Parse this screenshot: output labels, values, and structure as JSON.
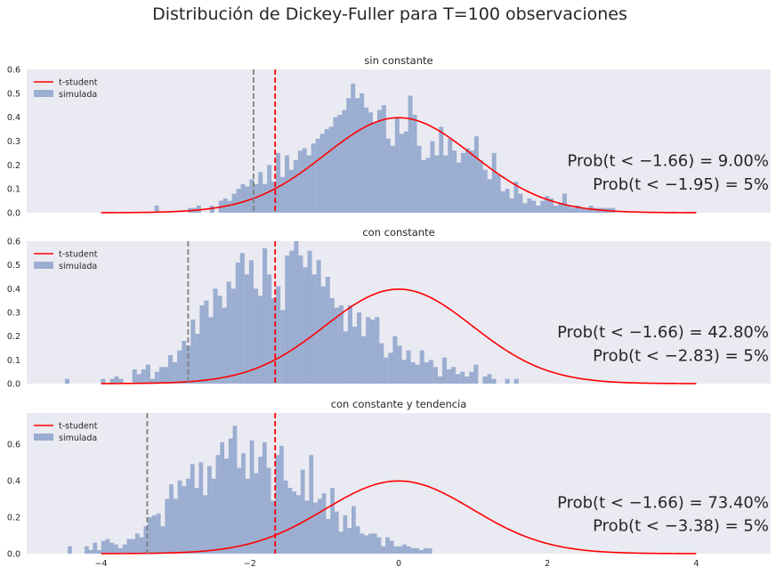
{
  "figure": {
    "suptitle": "Distribución de Dickey-Fuller para T=100 observaciones",
    "colors": {
      "background": "#eaeaf2",
      "histogram": "#4c72b0",
      "t_curve": "#ff0000",
      "t_critical_line": "#ff0000",
      "df_critical_line": "#808080"
    }
  },
  "chart_data": [
    {
      "type": "bar",
      "title": "sin constante",
      "xlim": [
        -5,
        5
      ],
      "ylim": [
        0,
        0.6
      ],
      "yticks": [
        "0.0",
        "0.1",
        "0.2",
        "0.3",
        "0.4",
        "0.5",
        "0.6"
      ],
      "xticks": [],
      "grid": false,
      "legend": {
        "placement": "top-left",
        "entries": [
          "t-student",
          "simulada"
        ]
      },
      "series": [
        {
          "name": "t-student",
          "type": "line",
          "distribution": "t-student",
          "x_range": [
            -4,
            4
          ],
          "color": "#ff0000"
        },
        {
          "name": "simulada",
          "type": "histogram",
          "color": "#4c72b0",
          "x_start": [
            -3.282,
            -2.834,
            -2.775,
            -2.716,
            -2.538,
            -2.419,
            -2.36,
            -2.301,
            -2.242,
            -2.183,
            -2.123,
            -2.064,
            -2.005,
            -1.946,
            -1.887,
            -1.827,
            -1.768,
            -1.709,
            -1.65,
            -1.59,
            -1.531,
            -1.472,
            -1.413,
            -1.353,
            -1.294,
            -1.235,
            -1.176,
            -1.116,
            -1.057,
            -0.998,
            -0.939,
            -0.88,
            -0.82,
            -0.761,
            -0.702,
            -0.643,
            -0.583,
            -0.524,
            -0.465,
            -0.406,
            -0.346,
            -0.287,
            -0.228,
            -0.169,
            -0.109,
            -0.05,
            0.009,
            0.068,
            0.127,
            0.187,
            0.246,
            0.305,
            0.364,
            0.424,
            0.483,
            0.542,
            0.601,
            0.661,
            0.72,
            0.779,
            0.838,
            0.898,
            0.957,
            1.016,
            1.075,
            1.134,
            1.194,
            1.253,
            1.312,
            1.371,
            1.431,
            1.49,
            1.549,
            1.608,
            1.668,
            1.727,
            1.786,
            1.845,
            1.905,
            1.964,
            2.023,
            2.082,
            2.142,
            2.201,
            2.26,
            2.319,
            2.378,
            2.438,
            2.497,
            2.556,
            2.615,
            2.675,
            2.734,
            2.793,
            2.852
          ],
          "bin_width": 0.0592,
          "density": [
            0.03,
            0.02,
            0.02,
            0.03,
            0.03,
            0.05,
            0.06,
            0.05,
            0.08,
            0.1,
            0.12,
            0.11,
            0.14,
            0.12,
            0.17,
            0.12,
            0.2,
            0.13,
            0.25,
            0.15,
            0.24,
            0.18,
            0.22,
            0.26,
            0.27,
            0.24,
            0.29,
            0.31,
            0.33,
            0.35,
            0.36,
            0.4,
            0.41,
            0.43,
            0.48,
            0.54,
            0.48,
            0.5,
            0.44,
            0.42,
            0.38,
            0.43,
            0.45,
            0.31,
            0.28,
            0.4,
            0.33,
            0.34,
            0.49,
            0.41,
            0.28,
            0.22,
            0.23,
            0.3,
            0.24,
            0.36,
            0.24,
            0.31,
            0.26,
            0.21,
            0.25,
            0.27,
            0.26,
            0.32,
            0.22,
            0.18,
            0.14,
            0.25,
            0.16,
            0.09,
            0.1,
            0.06,
            0.13,
            0.08,
            0.04,
            0.06,
            0.05,
            0.03,
            0.05,
            0.07,
            0.06,
            0.03,
            0.04,
            0.08,
            0.03,
            0.02,
            0.03,
            0.02,
            0.02,
            0.03,
            0.02,
            0.02,
            0.02,
            0.02,
            0.02
          ]
        }
      ],
      "vlines": [
        {
          "x": -1.66,
          "color": "#ff0000",
          "style": "dashed"
        },
        {
          "x": -1.95,
          "color": "#808080",
          "style": "dashed"
        }
      ],
      "annotations": [
        "Prob(t < −1.66) = 9.00%",
        "Prob(t < −1.95) = 5%"
      ]
    },
    {
      "type": "bar",
      "title": "con constante",
      "xlim": [
        -5,
        5
      ],
      "ylim": [
        0,
        0.6
      ],
      "yticks": [
        "0.0",
        "0.1",
        "0.2",
        "0.3",
        "0.4",
        "0.5",
        "0.6"
      ],
      "xticks": [],
      "grid": false,
      "legend": {
        "placement": "top-left",
        "entries": [
          "t-student",
          "simulada"
        ]
      },
      "series": [
        {
          "name": "t-student",
          "type": "line",
          "distribution": "t-student",
          "x_range": [
            -4,
            4
          ],
          "color": "#ff0000"
        },
        {
          "name": "simulada",
          "type": "histogram",
          "color": "#4c72b0",
          "x_start": [
            -4.486,
            -4.003,
            -3.882,
            -3.822,
            -3.761,
            -3.58,
            -3.52,
            -3.46,
            -3.399,
            -3.339,
            -3.279,
            -3.218,
            -3.158,
            -3.098,
            -3.037,
            -2.977,
            -2.916,
            -2.856,
            -2.796,
            -2.735,
            -2.675,
            -2.615,
            -2.554,
            -2.494,
            -2.433,
            -2.373,
            -2.313,
            -2.252,
            -2.192,
            -2.132,
            -2.071,
            -2.011,
            -1.95,
            -1.89,
            -1.83,
            -1.769,
            -1.709,
            -1.649,
            -1.588,
            -1.528,
            -1.467,
            -1.407,
            -1.347,
            -1.286,
            -1.226,
            -1.166,
            -1.105,
            -1.045,
            -0.984,
            -0.924,
            -0.864,
            -0.803,
            -0.743,
            -0.683,
            -0.622,
            -0.562,
            -0.501,
            -0.441,
            -0.381,
            -0.32,
            -0.26,
            -0.2,
            -0.139,
            -0.079,
            -0.018,
            0.042,
            0.102,
            0.163,
            0.223,
            0.283,
            0.344,
            0.404,
            0.465,
            0.525,
            0.585,
            0.646,
            0.706,
            0.766,
            0.827,
            0.887,
            0.948,
            1.008,
            1.129,
            1.189,
            1.25,
            1.431,
            1.552
          ],
          "bin_width": 0.0604,
          "density": [
            0.02,
            0.02,
            0.02,
            0.03,
            0.02,
            0.06,
            0.04,
            0.06,
            0.08,
            0.02,
            0.05,
            0.07,
            0.07,
            0.12,
            0.09,
            0.14,
            0.18,
            0.16,
            0.27,
            0.21,
            0.33,
            0.35,
            0.28,
            0.4,
            0.37,
            0.32,
            0.43,
            0.4,
            0.51,
            0.55,
            0.46,
            0.52,
            0.4,
            0.37,
            0.57,
            0.46,
            0.36,
            0.41,
            0.31,
            0.54,
            0.56,
            0.6,
            0.54,
            0.49,
            0.56,
            0.46,
            0.52,
            0.41,
            0.45,
            0.36,
            0.32,
            0.33,
            0.22,
            0.33,
            0.24,
            0.3,
            0.2,
            0.28,
            0.27,
            0.28,
            0.17,
            0.11,
            0.13,
            0.2,
            0.16,
            0.1,
            0.14,
            0.09,
            0.08,
            0.14,
            0.09,
            0.1,
            0.07,
            0.03,
            0.11,
            0.06,
            0.07,
            0.04,
            0.05,
            0.03,
            0.05,
            0.08,
            0.03,
            0.04,
            0.02,
            0.02,
            0.02
          ]
        }
      ],
      "vlines": [
        {
          "x": -1.66,
          "color": "#ff0000",
          "style": "dashed"
        },
        {
          "x": -2.83,
          "color": "#808080",
          "style": "dashed"
        }
      ],
      "annotations": [
        "Prob(t < −1.66) = 42.80%",
        "Prob(t < −2.83) = 5%"
      ]
    },
    {
      "type": "bar",
      "title": "con constante y tendencia",
      "xlim": [
        -5,
        5
      ],
      "ylim": [
        0,
        0.77
      ],
      "yticks": [
        "0.0",
        "0.2",
        "0.4",
        "0.6"
      ],
      "xticks": [
        "−4",
        "−2",
        "0",
        "2",
        "4"
      ],
      "grid": false,
      "legend": {
        "placement": "top-left",
        "entries": [
          "t-student",
          "simulada"
        ]
      },
      "series": [
        {
          "name": "t-student",
          "type": "line",
          "distribution": "t-student",
          "x_range": [
            -4,
            4
          ],
          "color": "#ff0000"
        },
        {
          "name": "simulada",
          "type": "histogram",
          "color": "#4c72b0",
          "x_start": [
            -4.449,
            -4.223,
            -4.168,
            -4.111,
            -4.054,
            -3.997,
            -3.94,
            -3.883,
            -3.826,
            -3.769,
            -3.712,
            -3.655,
            -3.598,
            -3.541,
            -3.484,
            -3.427,
            -3.37,
            -3.313,
            -3.256,
            -3.199,
            -3.142,
            -3.085,
            -3.028,
            -2.971,
            -2.914,
            -2.857,
            -2.8,
            -2.743,
            -2.686,
            -2.629,
            -2.572,
            -2.515,
            -2.458,
            -2.401,
            -2.344,
            -2.287,
            -2.23,
            -2.173,
            -2.116,
            -2.059,
            -2.002,
            -1.945,
            -1.888,
            -1.831,
            -1.774,
            -1.717,
            -1.66,
            -1.603,
            -1.546,
            -1.489,
            -1.432,
            -1.375,
            -1.318,
            -1.261,
            -1.204,
            -1.147,
            -1.09,
            -1.033,
            -0.976,
            -0.919,
            -0.862,
            -0.805,
            -0.748,
            -0.691,
            -0.634,
            -0.577,
            -0.52,
            -0.463,
            -0.406,
            -0.349,
            -0.292,
            -0.235,
            -0.178,
            -0.121,
            -0.064,
            -0.007,
            0.05,
            0.107,
            0.164,
            0.221,
            0.278,
            0.335,
            0.392
          ],
          "bin_width": 0.057,
          "density": [
            0.04,
            0.04,
            0.02,
            0.06,
            0.02,
            0.07,
            0.08,
            0.06,
            0.05,
            0.03,
            0.05,
            0.08,
            0.08,
            0.11,
            0.09,
            0.15,
            0.2,
            0.21,
            0.22,
            0.15,
            0.3,
            0.38,
            0.3,
            0.4,
            0.37,
            0.41,
            0.49,
            0.36,
            0.5,
            0.32,
            0.48,
            0.41,
            0.54,
            0.61,
            0.52,
            0.63,
            0.7,
            0.47,
            0.55,
            0.41,
            0.62,
            0.44,
            0.53,
            0.61,
            0.47,
            0.29,
            0.54,
            0.59,
            0.4,
            0.36,
            0.34,
            0.32,
            0.46,
            0.29,
            0.54,
            0.28,
            0.3,
            0.33,
            0.19,
            0.36,
            0.23,
            0.12,
            0.21,
            0.14,
            0.26,
            0.15,
            0.11,
            0.1,
            0.11,
            0.11,
            0.09,
            0.04,
            0.09,
            0.07,
            0.04,
            0.04,
            0.05,
            0.04,
            0.03,
            0.03,
            0.02,
            0.03,
            0.03
          ]
        }
      ],
      "vlines": [
        {
          "x": -1.66,
          "color": "#ff0000",
          "style": "dashed"
        },
        {
          "x": -3.38,
          "color": "#808080",
          "style": "dashed"
        }
      ],
      "annotations": [
        "Prob(t < −1.66) = 73.40%",
        "Prob(t < −3.38) = 5%"
      ]
    }
  ]
}
